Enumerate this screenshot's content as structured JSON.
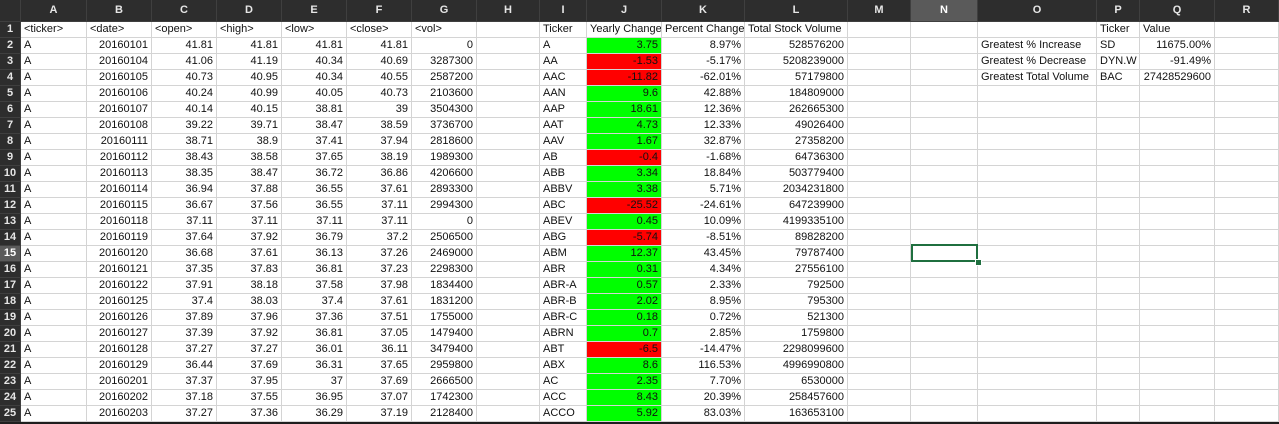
{
  "columns": [
    "A",
    "B",
    "C",
    "D",
    "E",
    "F",
    "G",
    "H",
    "I",
    "J",
    "K",
    "L",
    "M",
    "N",
    "O",
    "P",
    "Q",
    "R"
  ],
  "selected_column": "N",
  "selected_row": "15",
  "row_numbers": [
    "1",
    "2",
    "3",
    "4",
    "5",
    "6",
    "7",
    "8",
    "9",
    "10",
    "11",
    "12",
    "13",
    "14",
    "15",
    "16",
    "17",
    "18",
    "19",
    "20",
    "21",
    "22",
    "23",
    "24",
    "25"
  ],
  "raw_headers": [
    "<ticker>",
    "<date>",
    "<open>",
    "<high>",
    "<low>",
    "<close>",
    "<vol>"
  ],
  "raw_rows": [
    [
      "A",
      "20160101",
      "41.81",
      "41.81",
      "41.81",
      "41.81",
      "0"
    ],
    [
      "A",
      "20160104",
      "41.06",
      "41.19",
      "40.34",
      "40.69",
      "3287300"
    ],
    [
      "A",
      "20160105",
      "40.73",
      "40.95",
      "40.34",
      "40.55",
      "2587200"
    ],
    [
      "A",
      "20160106",
      "40.24",
      "40.99",
      "40.05",
      "40.73",
      "2103600"
    ],
    [
      "A",
      "20160107",
      "40.14",
      "40.15",
      "38.81",
      "39",
      "3504300"
    ],
    [
      "A",
      "20160108",
      "39.22",
      "39.71",
      "38.47",
      "38.59",
      "3736700"
    ],
    [
      "A",
      "20160111",
      "38.71",
      "38.9",
      "37.41",
      "37.94",
      "2818600"
    ],
    [
      "A",
      "20160112",
      "38.43",
      "38.58",
      "37.65",
      "38.19",
      "1989300"
    ],
    [
      "A",
      "20160113",
      "38.35",
      "38.47",
      "36.72",
      "36.86",
      "4206600"
    ],
    [
      "A",
      "20160114",
      "36.94",
      "37.88",
      "36.55",
      "37.61",
      "2893300"
    ],
    [
      "A",
      "20160115",
      "36.67",
      "37.56",
      "36.55",
      "37.11",
      "2994300"
    ],
    [
      "A",
      "20160118",
      "37.11",
      "37.11",
      "37.11",
      "37.11",
      "0"
    ],
    [
      "A",
      "20160119",
      "37.64",
      "37.92",
      "36.79",
      "37.2",
      "2506500"
    ],
    [
      "A",
      "20160120",
      "36.68",
      "37.61",
      "36.13",
      "37.26",
      "2469000"
    ],
    [
      "A",
      "20160121",
      "37.35",
      "37.83",
      "36.81",
      "37.23",
      "2298300"
    ],
    [
      "A",
      "20160122",
      "37.91",
      "38.18",
      "37.58",
      "37.98",
      "1834400"
    ],
    [
      "A",
      "20160125",
      "37.4",
      "38.03",
      "37.4",
      "37.61",
      "1831200"
    ],
    [
      "A",
      "20160126",
      "37.89",
      "37.96",
      "37.36",
      "37.51",
      "1755000"
    ],
    [
      "A",
      "20160127",
      "37.39",
      "37.92",
      "36.81",
      "37.05",
      "1479400"
    ],
    [
      "A",
      "20160128",
      "37.27",
      "37.27",
      "36.01",
      "36.11",
      "3479400"
    ],
    [
      "A",
      "20160129",
      "36.44",
      "37.69",
      "36.31",
      "37.65",
      "2959800"
    ],
    [
      "A",
      "20160201",
      "37.37",
      "37.95",
      "37",
      "37.69",
      "2666500"
    ],
    [
      "A",
      "20160202",
      "37.18",
      "37.55",
      "36.95",
      "37.07",
      "1742300"
    ],
    [
      "A",
      "20160203",
      "37.27",
      "37.36",
      "36.29",
      "37.19",
      "2128400"
    ]
  ],
  "summary_headers": [
    "Ticker",
    "Yearly Change",
    "Percent Change",
    "Total Stock Volume"
  ],
  "summary_rows": [
    {
      "ticker": "A",
      "yearly": "3.75",
      "pct": "8.97%",
      "vol": "528576200",
      "status": "positive"
    },
    {
      "ticker": "AA",
      "yearly": "-1.53",
      "pct": "-5.17%",
      "vol": "5208239000",
      "status": "negative"
    },
    {
      "ticker": "AAC",
      "yearly": "-11.82",
      "pct": "-62.01%",
      "vol": "57179800",
      "status": "negative"
    },
    {
      "ticker": "AAN",
      "yearly": "9.6",
      "pct": "42.88%",
      "vol": "184809000",
      "status": "positive"
    },
    {
      "ticker": "AAP",
      "yearly": "18.61",
      "pct": "12.36%",
      "vol": "262665300",
      "status": "positive"
    },
    {
      "ticker": "AAT",
      "yearly": "4.73",
      "pct": "12.33%",
      "vol": "49026400",
      "status": "positive"
    },
    {
      "ticker": "AAV",
      "yearly": "1.67",
      "pct": "32.87%",
      "vol": "27358200",
      "status": "positive"
    },
    {
      "ticker": "AB",
      "yearly": "-0.4",
      "pct": "-1.68%",
      "vol": "64736300",
      "status": "negative"
    },
    {
      "ticker": "ABB",
      "yearly": "3.34",
      "pct": "18.84%",
      "vol": "503779400",
      "status": "positive"
    },
    {
      "ticker": "ABBV",
      "yearly": "3.38",
      "pct": "5.71%",
      "vol": "2034231800",
      "status": "positive"
    },
    {
      "ticker": "ABC",
      "yearly": "-25.52",
      "pct": "-24.61%",
      "vol": "647239900",
      "status": "negative"
    },
    {
      "ticker": "ABEV",
      "yearly": "0.45",
      "pct": "10.09%",
      "vol": "4199335100",
      "status": "positive"
    },
    {
      "ticker": "ABG",
      "yearly": "-5.74",
      "pct": "-8.51%",
      "vol": "89828200",
      "status": "negative"
    },
    {
      "ticker": "ABM",
      "yearly": "12.37",
      "pct": "43.45%",
      "vol": "79787400",
      "status": "positive"
    },
    {
      "ticker": "ABR",
      "yearly": "0.31",
      "pct": "4.34%",
      "vol": "27556100",
      "status": "positive"
    },
    {
      "ticker": "ABR-A",
      "yearly": "0.57",
      "pct": "2.33%",
      "vol": "792500",
      "status": "positive"
    },
    {
      "ticker": "ABR-B",
      "yearly": "2.02",
      "pct": "8.95%",
      "vol": "795300",
      "status": "positive"
    },
    {
      "ticker": "ABR-C",
      "yearly": "0.18",
      "pct": "0.72%",
      "vol": "521300",
      "status": "positive"
    },
    {
      "ticker": "ABRN",
      "yearly": "0.7",
      "pct": "2.85%",
      "vol": "1759800",
      "status": "positive"
    },
    {
      "ticker": "ABT",
      "yearly": "-6.5",
      "pct": "-14.47%",
      "vol": "2298099600",
      "status": "negative"
    },
    {
      "ticker": "ABX",
      "yearly": "8.6",
      "pct": "116.53%",
      "vol": "4996990800",
      "status": "positive"
    },
    {
      "ticker": "AC",
      "yearly": "2.35",
      "pct": "7.70%",
      "vol": "6530000",
      "status": "positive"
    },
    {
      "ticker": "ACC",
      "yearly": "8.43",
      "pct": "20.39%",
      "vol": "258457600",
      "status": "positive"
    },
    {
      "ticker": "ACCO",
      "yearly": "5.92",
      "pct": "83.03%",
      "vol": "163653100",
      "status": "positive"
    }
  ],
  "greatest_headers": {
    "ticker": "Ticker",
    "value": "Value"
  },
  "greatest_rows": [
    {
      "label": "Greatest % Increase",
      "ticker": "SD",
      "value": "11675.00%"
    },
    {
      "label": "Greatest % Decrease",
      "ticker": "DYN.W",
      "value": "-91.49%"
    },
    {
      "label": "Greatest Total Volume",
      "ticker": "BAC",
      "value": "27428529600"
    }
  ],
  "colors": {
    "positive": "#00ff00",
    "negative": "#ff0000"
  }
}
